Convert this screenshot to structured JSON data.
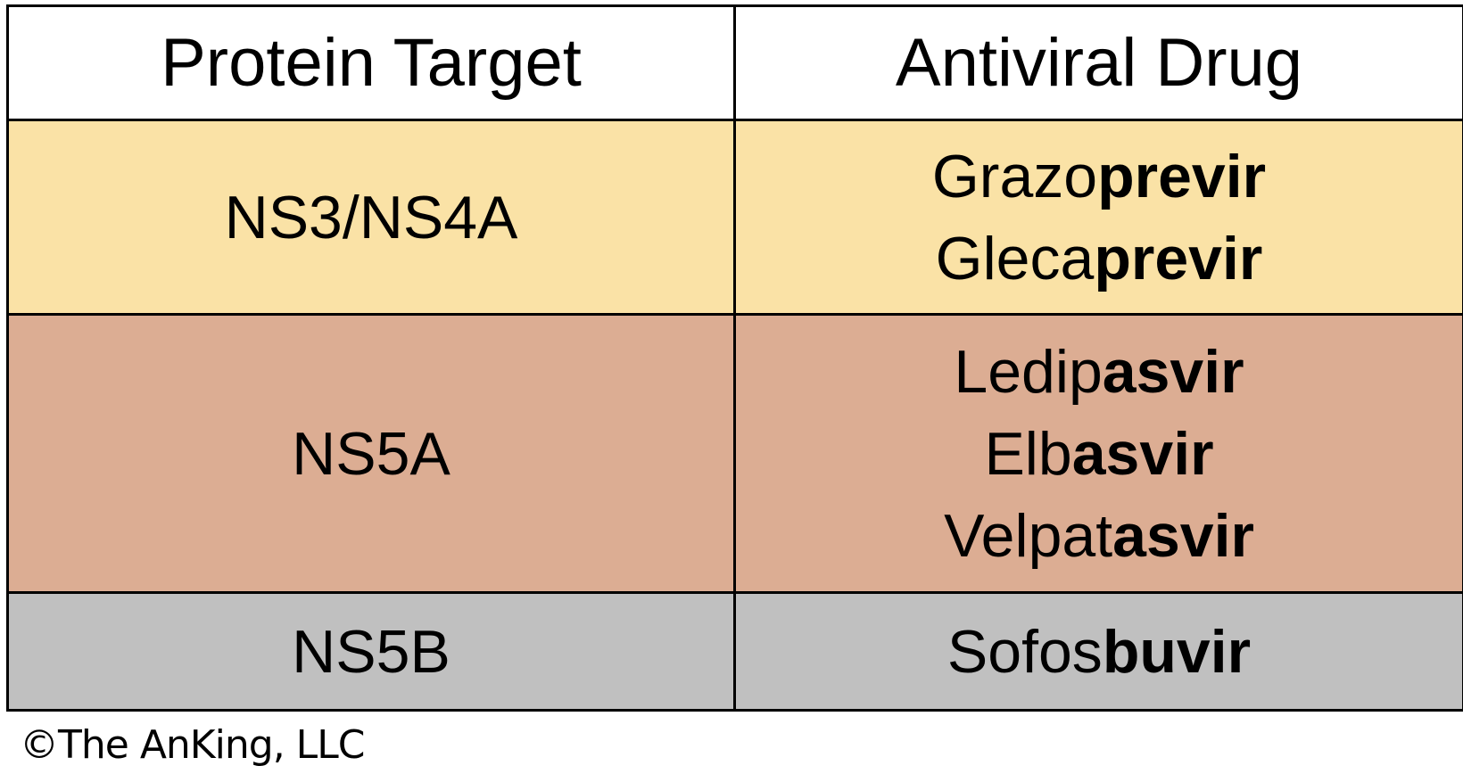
{
  "table": {
    "headers": {
      "target": "Protein Target",
      "drug": "Antiviral Drug"
    },
    "rows": [
      {
        "target": "NS3/NS4A",
        "color": "#FAE2A6",
        "drugs": [
          {
            "prefix": "Grazo",
            "suffix": "previr"
          },
          {
            "prefix": "Gleca",
            "suffix": "previr"
          }
        ]
      },
      {
        "target": "NS5A",
        "color": "#DCAD93",
        "drugs": [
          {
            "prefix": "Ledip",
            "suffix": "asvir"
          },
          {
            "prefix": "Elb",
            "suffix": "asvir"
          },
          {
            "prefix": "Velpat",
            "suffix": "asvir"
          }
        ]
      },
      {
        "target": "NS5B",
        "color": "#C0C0C0",
        "drugs": [
          {
            "prefix": "Sofos",
            "suffix": "buvir"
          }
        ]
      }
    ]
  },
  "footer": {
    "copyright": "©The AnKing, LLC"
  }
}
